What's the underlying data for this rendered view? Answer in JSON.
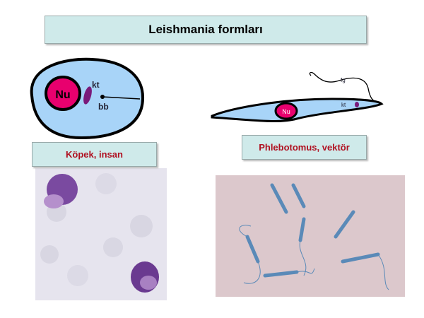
{
  "title": "Leishmania formları",
  "amastigote": {
    "label": "Köpek, insan",
    "nucleus": "Nu",
    "kinetoplast": "kt",
    "basal_body": "bb"
  },
  "promastigote": {
    "label": "Phlebotomus, vektör",
    "nucleus": "Nu",
    "kinetoplast": "kt",
    "flagellum": "fg"
  },
  "colors": {
    "cell": "#a8d4f8",
    "nucleus": "#e8006e",
    "kinetoplast": "#7a1a7a",
    "label_text": "#b01020",
    "box": "#cfeaea"
  }
}
